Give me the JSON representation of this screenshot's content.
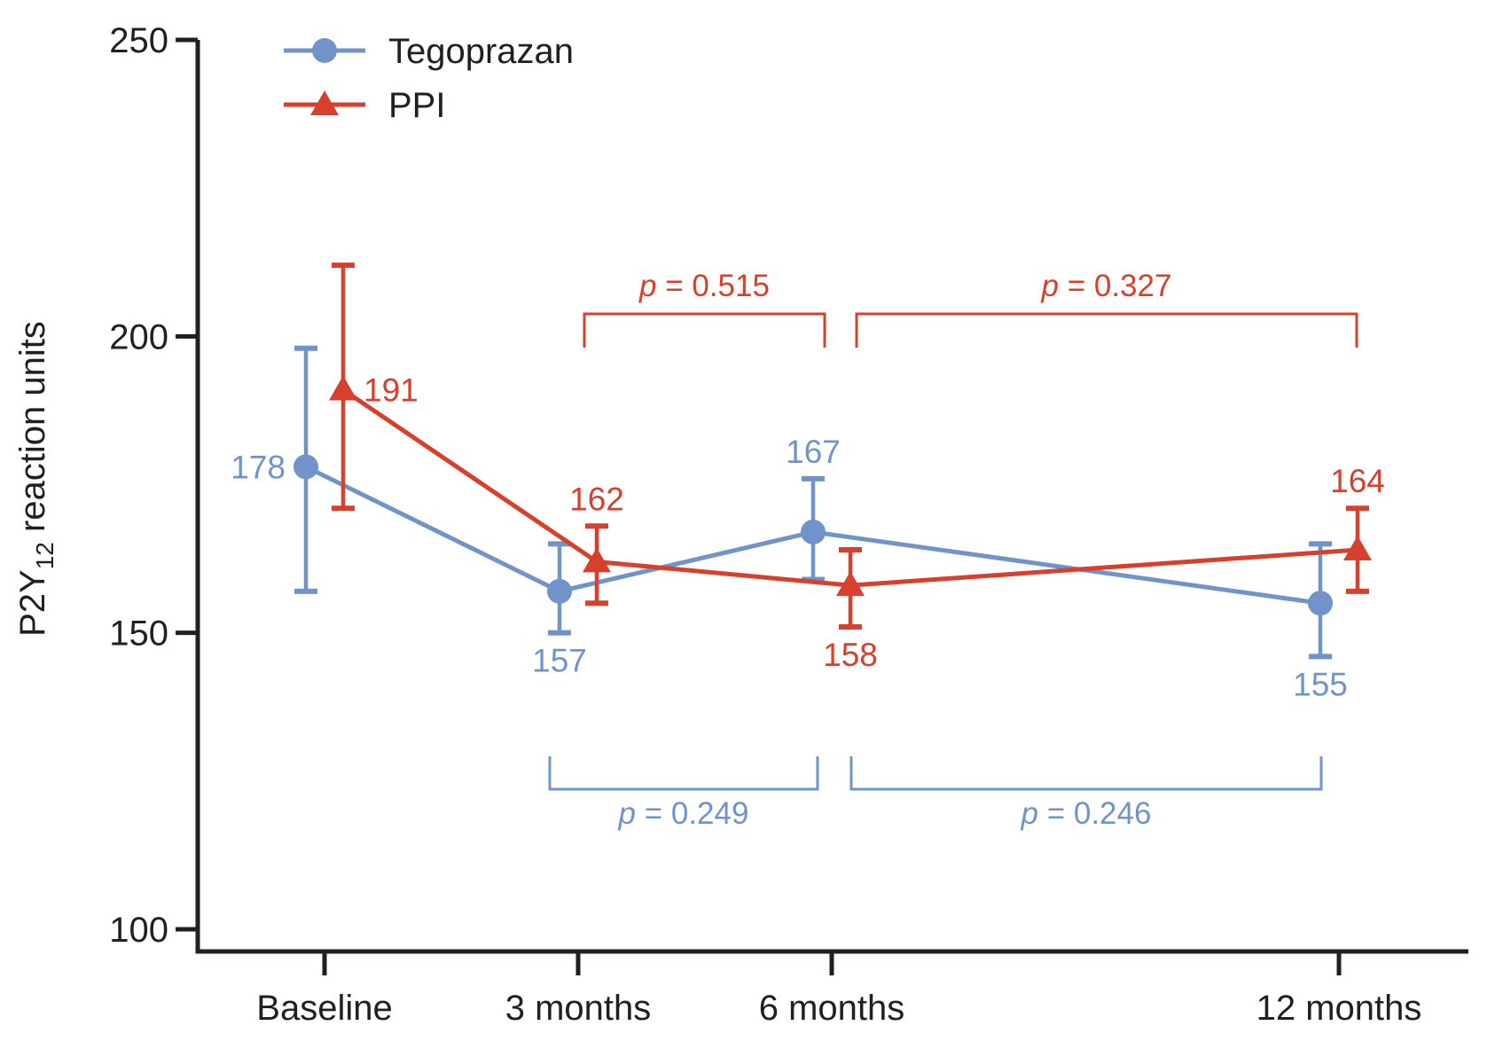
{
  "figure": {
    "kind": "statistical line chart with error bars",
    "background": "#ffffff",
    "axis_color": "#231f20",
    "text_color": "#231f20"
  },
  "chart_data": {
    "type": "line",
    "title": "",
    "xlabel": "",
    "ylabel": "P2Y12 reaction units",
    "ylabel_parts": {
      "base": "P2Y",
      "subscript": "12",
      "rest": " reaction units"
    },
    "x_categories": [
      "Baseline",
      "3 months",
      "6 months",
      "12 months"
    ],
    "x_values_months": [
      0,
      3,
      6,
      12
    ],
    "ylim": [
      100,
      250
    ],
    "yticks": [
      250,
      200,
      150,
      100
    ],
    "grid": false,
    "legend_position": "top-left",
    "series": [
      {
        "name": "Tegoprazan",
        "color": "#7094ca",
        "marker": "circle",
        "values": [
          178,
          157,
          167,
          155
        ],
        "error_high": [
          198,
          165,
          176,
          165
        ],
        "error_low": [
          157,
          150,
          159,
          146
        ],
        "label_placement": [
          "left",
          "below",
          "above",
          "below"
        ]
      },
      {
        "name": "PPI",
        "color": "#d6402d",
        "marker": "triangle",
        "values": [
          191,
          162,
          158,
          164
        ],
        "error_high": [
          212,
          168,
          164,
          171
        ],
        "error_low": [
          171,
          155,
          151,
          157
        ],
        "label_placement": [
          "right",
          "above",
          "below",
          "above"
        ]
      }
    ],
    "comparisons": [
      {
        "label": "p = 0.515",
        "p_value": "0.515",
        "series": "PPI",
        "between": [
          "3 months",
          "6 months"
        ],
        "position": "top"
      },
      {
        "label": "p = 0.327",
        "p_value": "0.327",
        "series": "PPI",
        "between": [
          "6 months",
          "12 months"
        ],
        "position": "top"
      },
      {
        "label": "p = 0.249",
        "p_value": "0.249",
        "series": "Tegoprazan",
        "between": [
          "3 months",
          "6 months"
        ],
        "position": "bottom"
      },
      {
        "label": "p = 0.246",
        "p_value": "0.246",
        "series": "Tegoprazan",
        "between": [
          "6 months",
          "12 months"
        ],
        "position": "bottom"
      }
    ]
  }
}
